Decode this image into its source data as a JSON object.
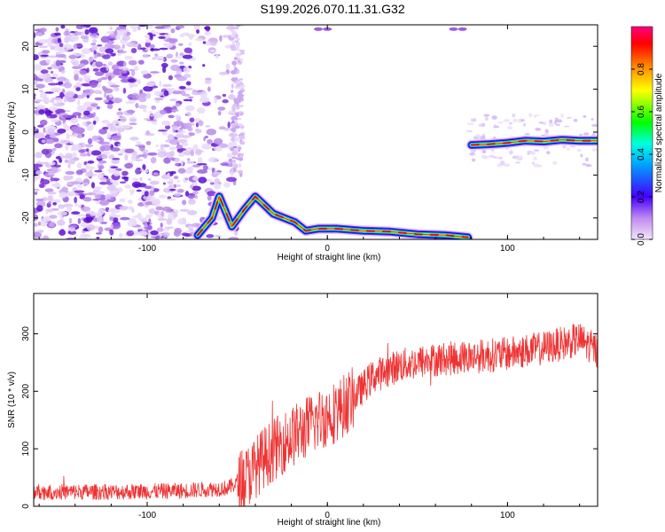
{
  "title": "S199.2026.070.11.31.G32",
  "chart_data": [
    {
      "type": "heatmap",
      "xlabel": "Height of straight line (km)",
      "ylabel": "Frequency (Hz)",
      "xlim": [
        -163,
        150
      ],
      "ylim": [
        -25,
        25
      ],
      "x_ticks": [
        "-100",
        "0",
        "100"
      ],
      "y_ticks": [
        "-20",
        "-10",
        "0",
        "10",
        "20"
      ],
      "colorbar": {
        "label": "Normalized spectral amplitude",
        "range": [
          0,
          1
        ],
        "ticks": [
          "0.0",
          "0.2",
          "0.4",
          "0.6",
          "0.8"
        ],
        "colors": [
          "#f2e6fb",
          "#8a2be2",
          "#0000ff",
          "#00ffff",
          "#00ff00",
          "#ffff00",
          "#ff7f00",
          "#ff0000",
          "#ff0080"
        ]
      },
      "ridge": [
        {
          "x": -72,
          "f": -24
        },
        {
          "x": -64,
          "f": -20
        },
        {
          "x": -60,
          "f": -15
        },
        {
          "x": -53,
          "f": -22
        },
        {
          "x": -46,
          "f": -18
        },
        {
          "x": -40,
          "f": -15
        },
        {
          "x": -35,
          "f": -17
        },
        {
          "x": -30,
          "f": -19
        },
        {
          "x": -24,
          "f": -20
        },
        {
          "x": -18,
          "f": -21
        },
        {
          "x": -12,
          "f": -23
        },
        {
          "x": -5,
          "f": -22.5
        },
        {
          "x": 5,
          "f": -22.5
        },
        {
          "x": 20,
          "f": -23
        },
        {
          "x": 35,
          "f": -23.2
        },
        {
          "x": 50,
          "f": -23.8
        },
        {
          "x": 65,
          "f": -24
        },
        {
          "x": 78,
          "f": -24.5
        }
      ],
      "ridge_upper": [
        {
          "x": 80,
          "f": -3
        },
        {
          "x": 90,
          "f": -2.8
        },
        {
          "x": 100,
          "f": -2.5
        },
        {
          "x": 110,
          "f": -2
        },
        {
          "x": 120,
          "f": -2.2
        },
        {
          "x": 130,
          "f": -1.8
        },
        {
          "x": 140,
          "f": -2
        },
        {
          "x": 150,
          "f": -2
        }
      ]
    },
    {
      "type": "line",
      "xlabel": "Height of straight line (km)",
      "ylabel": "SNR (10 * v/v)",
      "xlim": [
        -163,
        150
      ],
      "ylim": [
        0,
        370
      ],
      "x_ticks": [
        "-100",
        "0",
        "100"
      ],
      "y_ticks": [
        "0",
        "100",
        "200",
        "300"
      ],
      "color": "#ee3333",
      "trend": [
        {
          "x": -163,
          "y": 25
        },
        {
          "x": -120,
          "y": 25
        },
        {
          "x": -80,
          "y": 27
        },
        {
          "x": -55,
          "y": 32
        },
        {
          "x": -45,
          "y": 50
        },
        {
          "x": -35,
          "y": 85
        },
        {
          "x": -25,
          "y": 110
        },
        {
          "x": -15,
          "y": 130
        },
        {
          "x": -5,
          "y": 150
        },
        {
          "x": 5,
          "y": 165
        },
        {
          "x": 15,
          "y": 190
        },
        {
          "x": 25,
          "y": 225
        },
        {
          "x": 40,
          "y": 245
        },
        {
          "x": 60,
          "y": 255
        },
        {
          "x": 80,
          "y": 260
        },
        {
          "x": 100,
          "y": 265
        },
        {
          "x": 120,
          "y": 275
        },
        {
          "x": 140,
          "y": 290
        },
        {
          "x": 150,
          "y": 270
        }
      ]
    }
  ]
}
